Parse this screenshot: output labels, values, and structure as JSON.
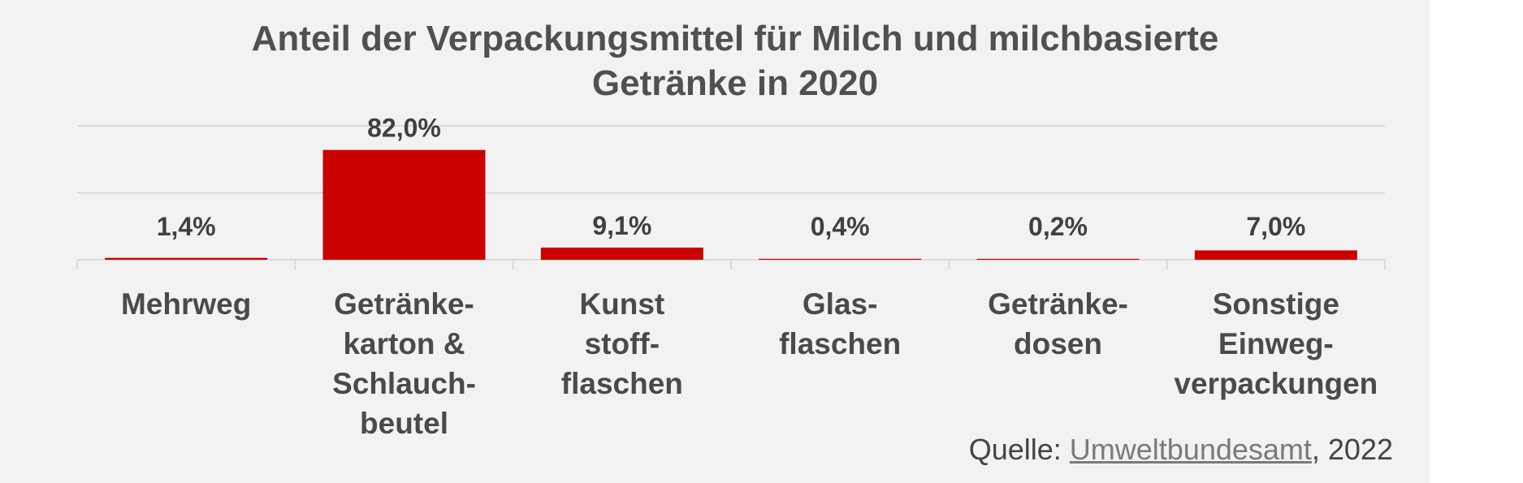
{
  "chart_data": {
    "type": "bar",
    "title": [
      "Anteil der Verpackungsmittel für Milch und milchbasierte",
      "Getränke in 2020"
    ],
    "categories": [
      [
        "Mehrweg"
      ],
      [
        "Getränke-",
        "karton &",
        "Schlauch-",
        "beutel"
      ],
      [
        "Kunst",
        "stoff-",
        "flaschen"
      ],
      [
        "Glas-",
        "flaschen"
      ],
      [
        "Getränke-",
        "dosen"
      ],
      [
        "Sonstige",
        "Einweg-",
        "verpackungen"
      ]
    ],
    "values": [
      1.4,
      82.0,
      9.1,
      0.4,
      0.2,
      7.0
    ],
    "data_labels": [
      "1,4%",
      "82,0%",
      "9,1%",
      "0,4%",
      "0,2%",
      "7,0%"
    ],
    "ylim": [
      0,
      100
    ],
    "unit": "%",
    "grid": true,
    "legend": "none",
    "bar_color": "#cc0000"
  },
  "source": {
    "prefix": "Quelle: ",
    "link_text": "Umweltbundesamt",
    "suffix": ", 2022"
  }
}
